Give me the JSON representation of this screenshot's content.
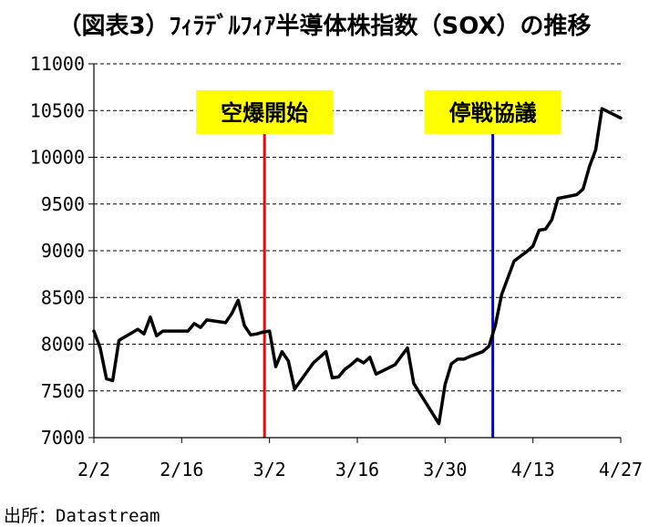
{
  "chart_data": {
    "type": "line",
    "title": "（図表3）ﾌｨﾗﾃﾞﾙﾌｨｱ半導体株指数（SOX）の推移",
    "xlabel": "",
    "ylabel": "",
    "ylim": [
      7000,
      11000
    ],
    "yticks": [
      7000,
      7500,
      8000,
      8500,
      9000,
      9500,
      10000,
      10500,
      11000
    ],
    "xlim_days": [
      0,
      84
    ],
    "xticks": [
      {
        "label": "2/2",
        "day": 0
      },
      {
        "label": "2/16",
        "day": 14
      },
      {
        "label": "3/2",
        "day": 28
      },
      {
        "label": "3/16",
        "day": 42
      },
      {
        "label": "3/30",
        "day": 56
      },
      {
        "label": "4/13",
        "day": 70
      },
      {
        "label": "4/27",
        "day": 84
      }
    ],
    "grid": "horizontal-dashed",
    "legend": "none",
    "line_color": "#000000",
    "series": [
      {
        "name": "",
        "points": [
          [
            0,
            8140
          ],
          [
            1,
            7960
          ],
          [
            2,
            7630
          ],
          [
            3,
            7610
          ],
          [
            4,
            8040
          ],
          [
            5,
            8080
          ],
          [
            6,
            8120
          ],
          [
            7,
            8160
          ],
          [
            8,
            8110
          ],
          [
            9,
            8290
          ],
          [
            10,
            8090
          ],
          [
            11,
            8140
          ],
          [
            14,
            8140
          ],
          [
            15,
            8140
          ],
          [
            16,
            8220
          ],
          [
            17,
            8180
          ],
          [
            18,
            8260
          ],
          [
            21,
            8230
          ],
          [
            22,
            8330
          ],
          [
            23,
            8470
          ],
          [
            24,
            8200
          ],
          [
            25,
            8100
          ],
          [
            26,
            8110
          ],
          [
            27,
            8130
          ],
          [
            28,
            8140
          ],
          [
            29,
            7760
          ],
          [
            30,
            7920
          ],
          [
            31,
            7820
          ],
          [
            32,
            7520
          ],
          [
            35,
            7800
          ],
          [
            36,
            7860
          ],
          [
            37,
            7920
          ],
          [
            38,
            7640
          ],
          [
            39,
            7650
          ],
          [
            40,
            7730
          ],
          [
            41,
            7780
          ],
          [
            42,
            7840
          ],
          [
            43,
            7800
          ],
          [
            44,
            7860
          ],
          [
            45,
            7680
          ],
          [
            48,
            7780
          ],
          [
            50,
            7960
          ],
          [
            51,
            7580
          ],
          [
            55,
            7150
          ],
          [
            56,
            7570
          ],
          [
            57,
            7790
          ],
          [
            58,
            7840
          ],
          [
            59,
            7840
          ],
          [
            60,
            7870
          ],
          [
            62,
            7920
          ],
          [
            63,
            7980
          ],
          [
            64,
            8200
          ],
          [
            65,
            8530
          ],
          [
            67,
            8890
          ],
          [
            68,
            8940
          ],
          [
            69,
            8990
          ],
          [
            70,
            9050
          ],
          [
            71,
            9220
          ],
          [
            72,
            9230
          ],
          [
            73,
            9330
          ],
          [
            74,
            9560
          ],
          [
            77,
            9600
          ],
          [
            78,
            9660
          ],
          [
            79,
            9900
          ],
          [
            80,
            10080
          ],
          [
            81,
            10520
          ],
          [
            84,
            10420
          ]
        ]
      }
    ],
    "annotations": [
      {
        "label": "空爆開始",
        "day": 27.2,
        "line_color": "#ff0000",
        "box_color": "#ffff00",
        "label_value_top": 10640
      },
      {
        "label": "停戦協議",
        "day": 63.6,
        "line_color": "#0000ff",
        "box_color": "#ffff00",
        "label_value_top": 10640
      }
    ]
  },
  "source": "出所：Datastream"
}
